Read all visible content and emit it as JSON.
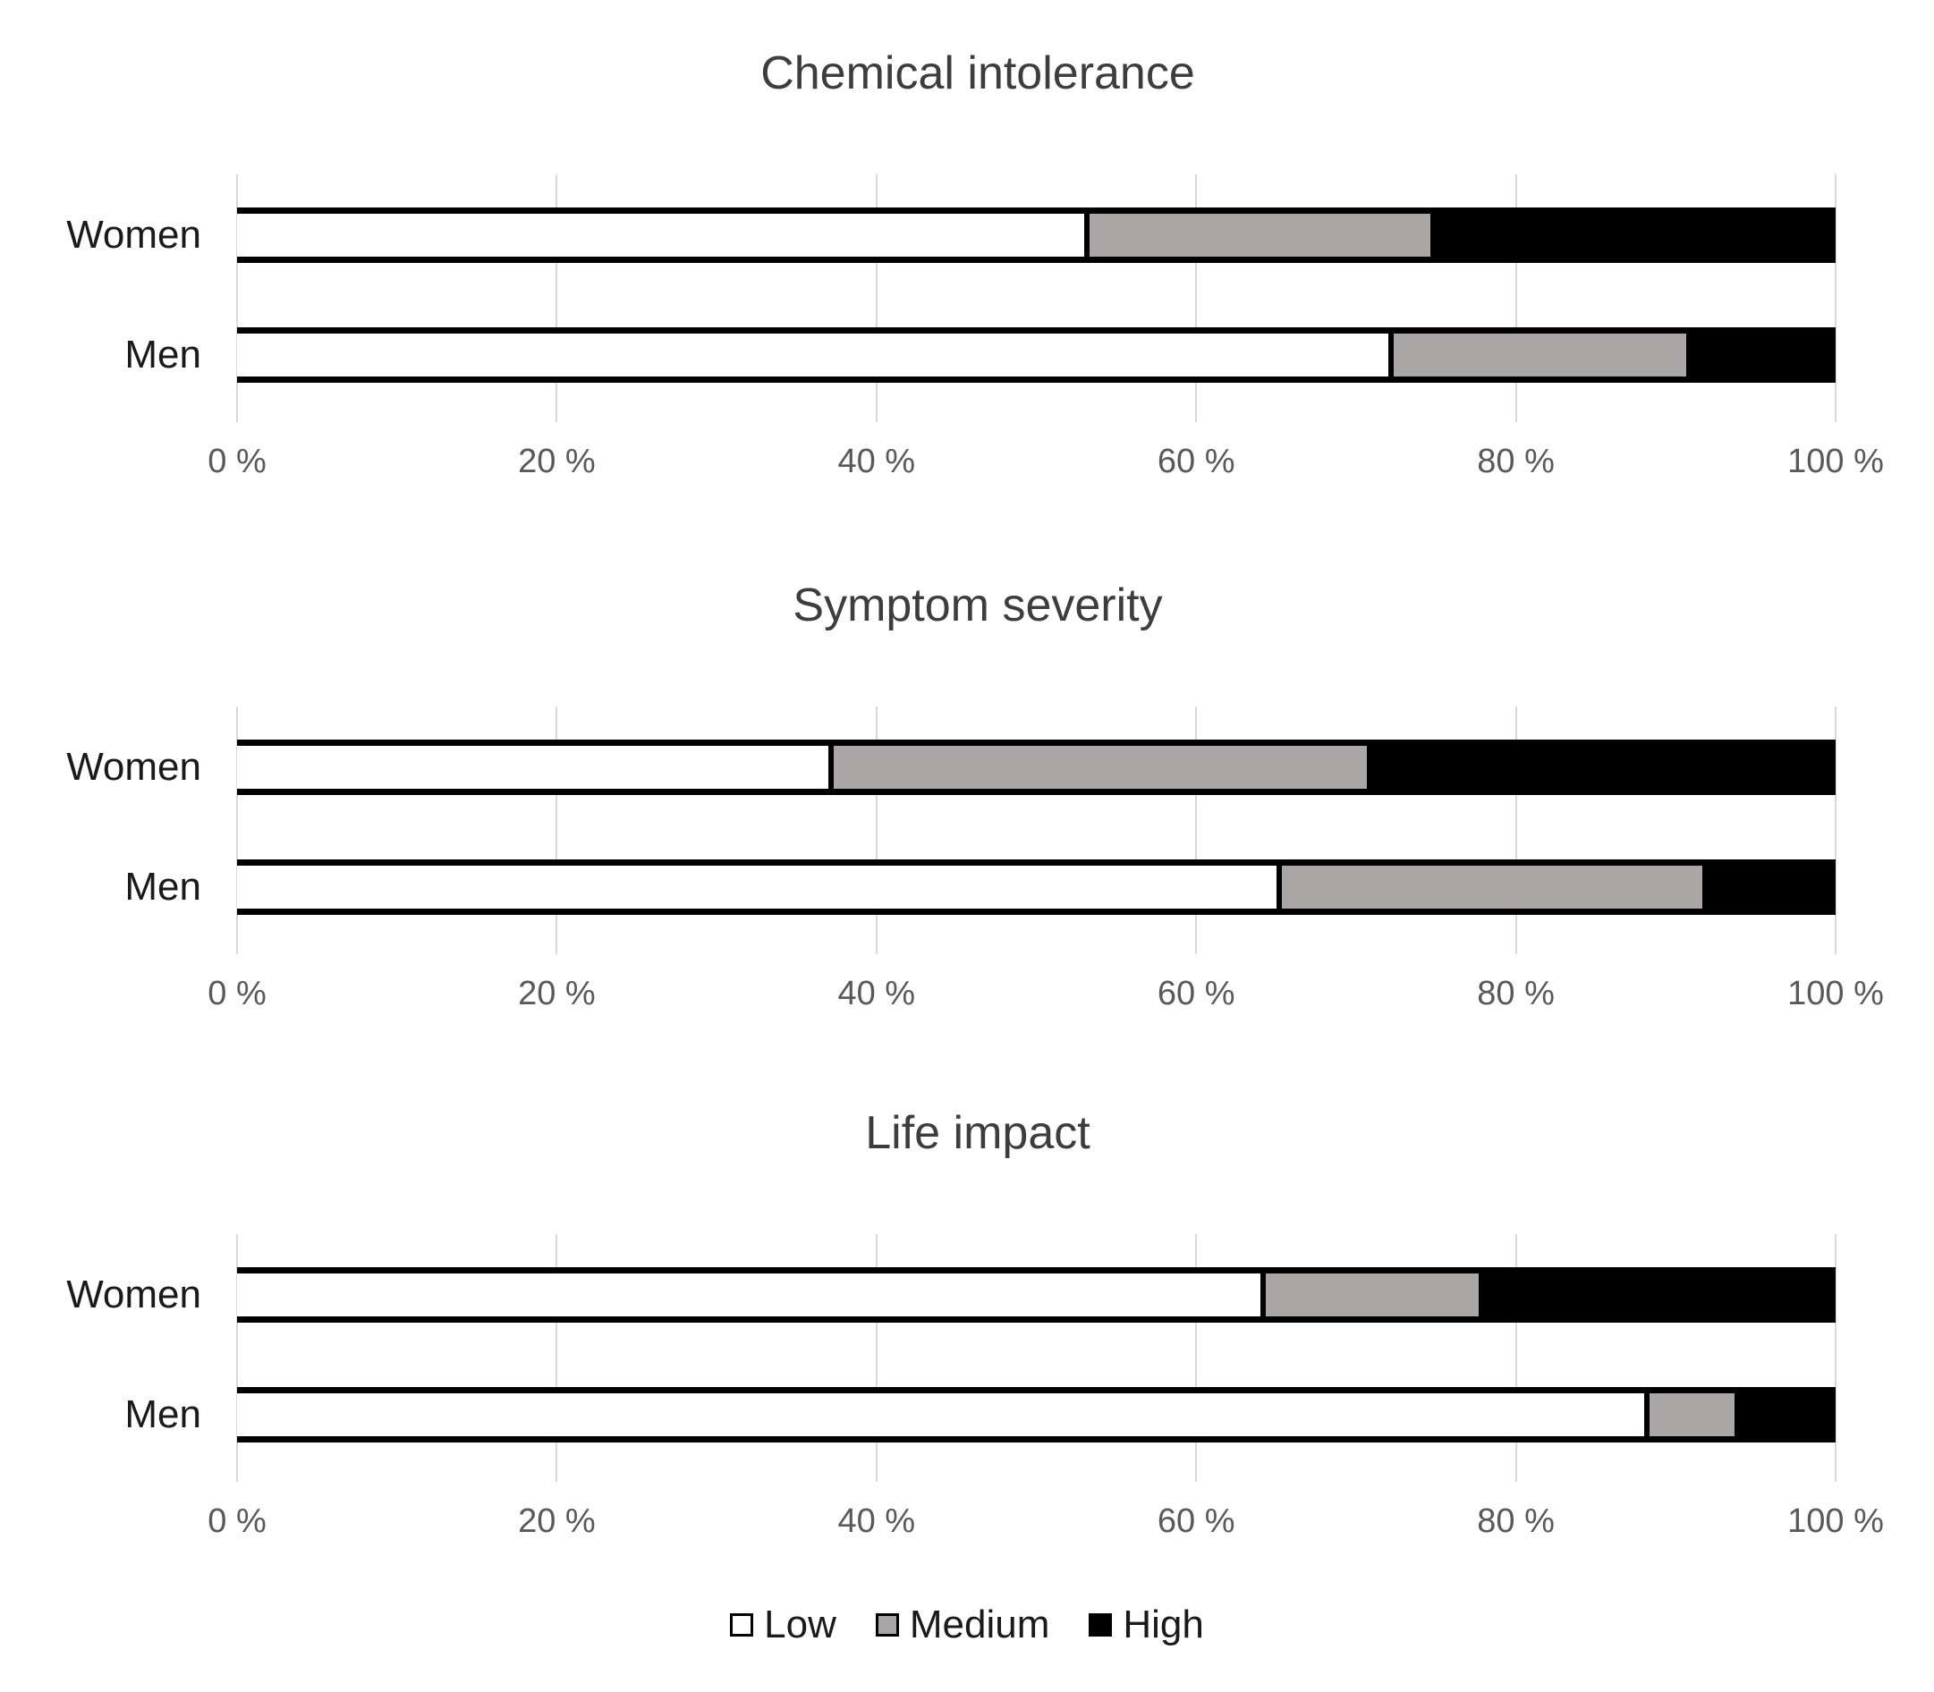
{
  "page": {
    "background": "#ffffff",
    "description": "Three horizontal 100% stacked bar charts comparing Women and Men"
  },
  "colors": {
    "low": "#ffffff",
    "medium": "#aaa6a5",
    "high": "#000000",
    "gridline": "#d9d9d9",
    "axis_tick_text": "#595959",
    "title_text": "#3d3d3d",
    "category_text": "#1a1a1a",
    "bar_border": "#000000"
  },
  "legend": {
    "position": "bottom-center",
    "items": [
      {
        "label": "Low",
        "color": "#ffffff"
      },
      {
        "label": "Medium",
        "color": "#aaa6a5"
      },
      {
        "label": "High",
        "color": "#000000"
      }
    ]
  },
  "chart_data": [
    {
      "type": "bar",
      "orientation": "horizontal",
      "stacked": true,
      "title": "Chemical intolerance",
      "categories": [
        "Women",
        "Men"
      ],
      "series": [
        {
          "name": "Low",
          "values": [
            53,
            72
          ],
          "color": "#ffffff"
        },
        {
          "name": "Medium",
          "values": [
            22,
            19
          ],
          "color": "#aaa6a5"
        },
        {
          "name": "High",
          "values": [
            25,
            9
          ],
          "color": "#000000"
        }
      ],
      "xlabel": "",
      "ylabel": "",
      "xlim": [
        0,
        100
      ],
      "x_tick_labels": [
        "0 %",
        "20 %",
        "40 %",
        "60 %",
        "80 %",
        "100 %"
      ],
      "grid": "vertical",
      "legend_position": "shared-bottom"
    },
    {
      "type": "bar",
      "orientation": "horizontal",
      "stacked": true,
      "title": "Symptom severity",
      "categories": [
        "Women",
        "Men"
      ],
      "series": [
        {
          "name": "Low",
          "values": [
            37,
            65
          ],
          "color": "#ffffff"
        },
        {
          "name": "Medium",
          "values": [
            34,
            27
          ],
          "color": "#aaa6a5"
        },
        {
          "name": "High",
          "values": [
            29,
            8
          ],
          "color": "#000000"
        }
      ],
      "xlabel": "",
      "ylabel": "",
      "xlim": [
        0,
        100
      ],
      "x_tick_labels": [
        "0 %",
        "20 %",
        "40 %",
        "60 %",
        "80 %",
        "100 %"
      ],
      "grid": "vertical",
      "legend_position": "shared-bottom"
    },
    {
      "type": "bar",
      "orientation": "horizontal",
      "stacked": true,
      "title": "Life impact",
      "categories": [
        "Women",
        "Men"
      ],
      "series": [
        {
          "name": "Low",
          "values": [
            64,
            88
          ],
          "color": "#ffffff"
        },
        {
          "name": "Medium",
          "values": [
            14,
            6
          ],
          "color": "#aaa6a5"
        },
        {
          "name": "High",
          "values": [
            22,
            6
          ],
          "color": "#000000"
        }
      ],
      "xlabel": "",
      "ylabel": "",
      "xlim": [
        0,
        100
      ],
      "x_tick_labels": [
        "0 %",
        "20 %",
        "40 %",
        "60 %",
        "80 %",
        "100 %"
      ],
      "grid": "vertical",
      "legend_position": "shared-bottom"
    }
  ]
}
